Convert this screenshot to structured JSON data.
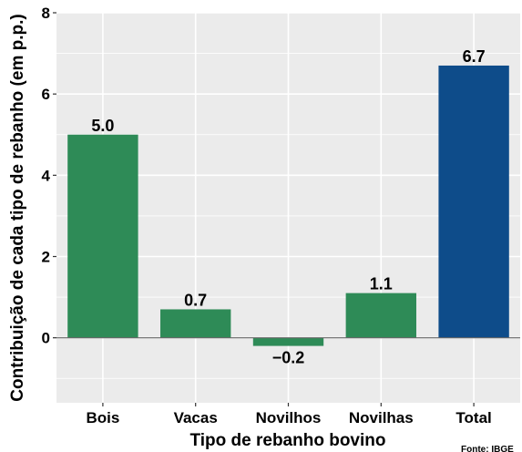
{
  "chart_data": {
    "type": "bar",
    "categories": [
      "Bois",
      "Vacas",
      "Novilhos",
      "Novilhas",
      "Total"
    ],
    "values": [
      5.0,
      0.7,
      -0.2,
      1.1,
      6.7
    ],
    "value_labels": [
      "5.0",
      "0.7",
      "−0.2",
      "1.1",
      "6.7"
    ],
    "bar_colors": [
      "#2e8b57",
      "#2e8b57",
      "#2e8b57",
      "#2e8b57",
      "#0e4c8a"
    ],
    "xlabel": "Tipo de rebanho bovino",
    "ylabel": "Contribuição de cada tipo de rebanho (em p.p.)",
    "ylim": [
      -1.6,
      8
    ],
    "yticks": [
      0,
      2,
      4,
      6,
      8
    ],
    "grid": true,
    "zero_line": true,
    "panel_background": "#ebebeb",
    "grid_color": "#ffffff",
    "source_note": "Fonte: IBGE"
  }
}
